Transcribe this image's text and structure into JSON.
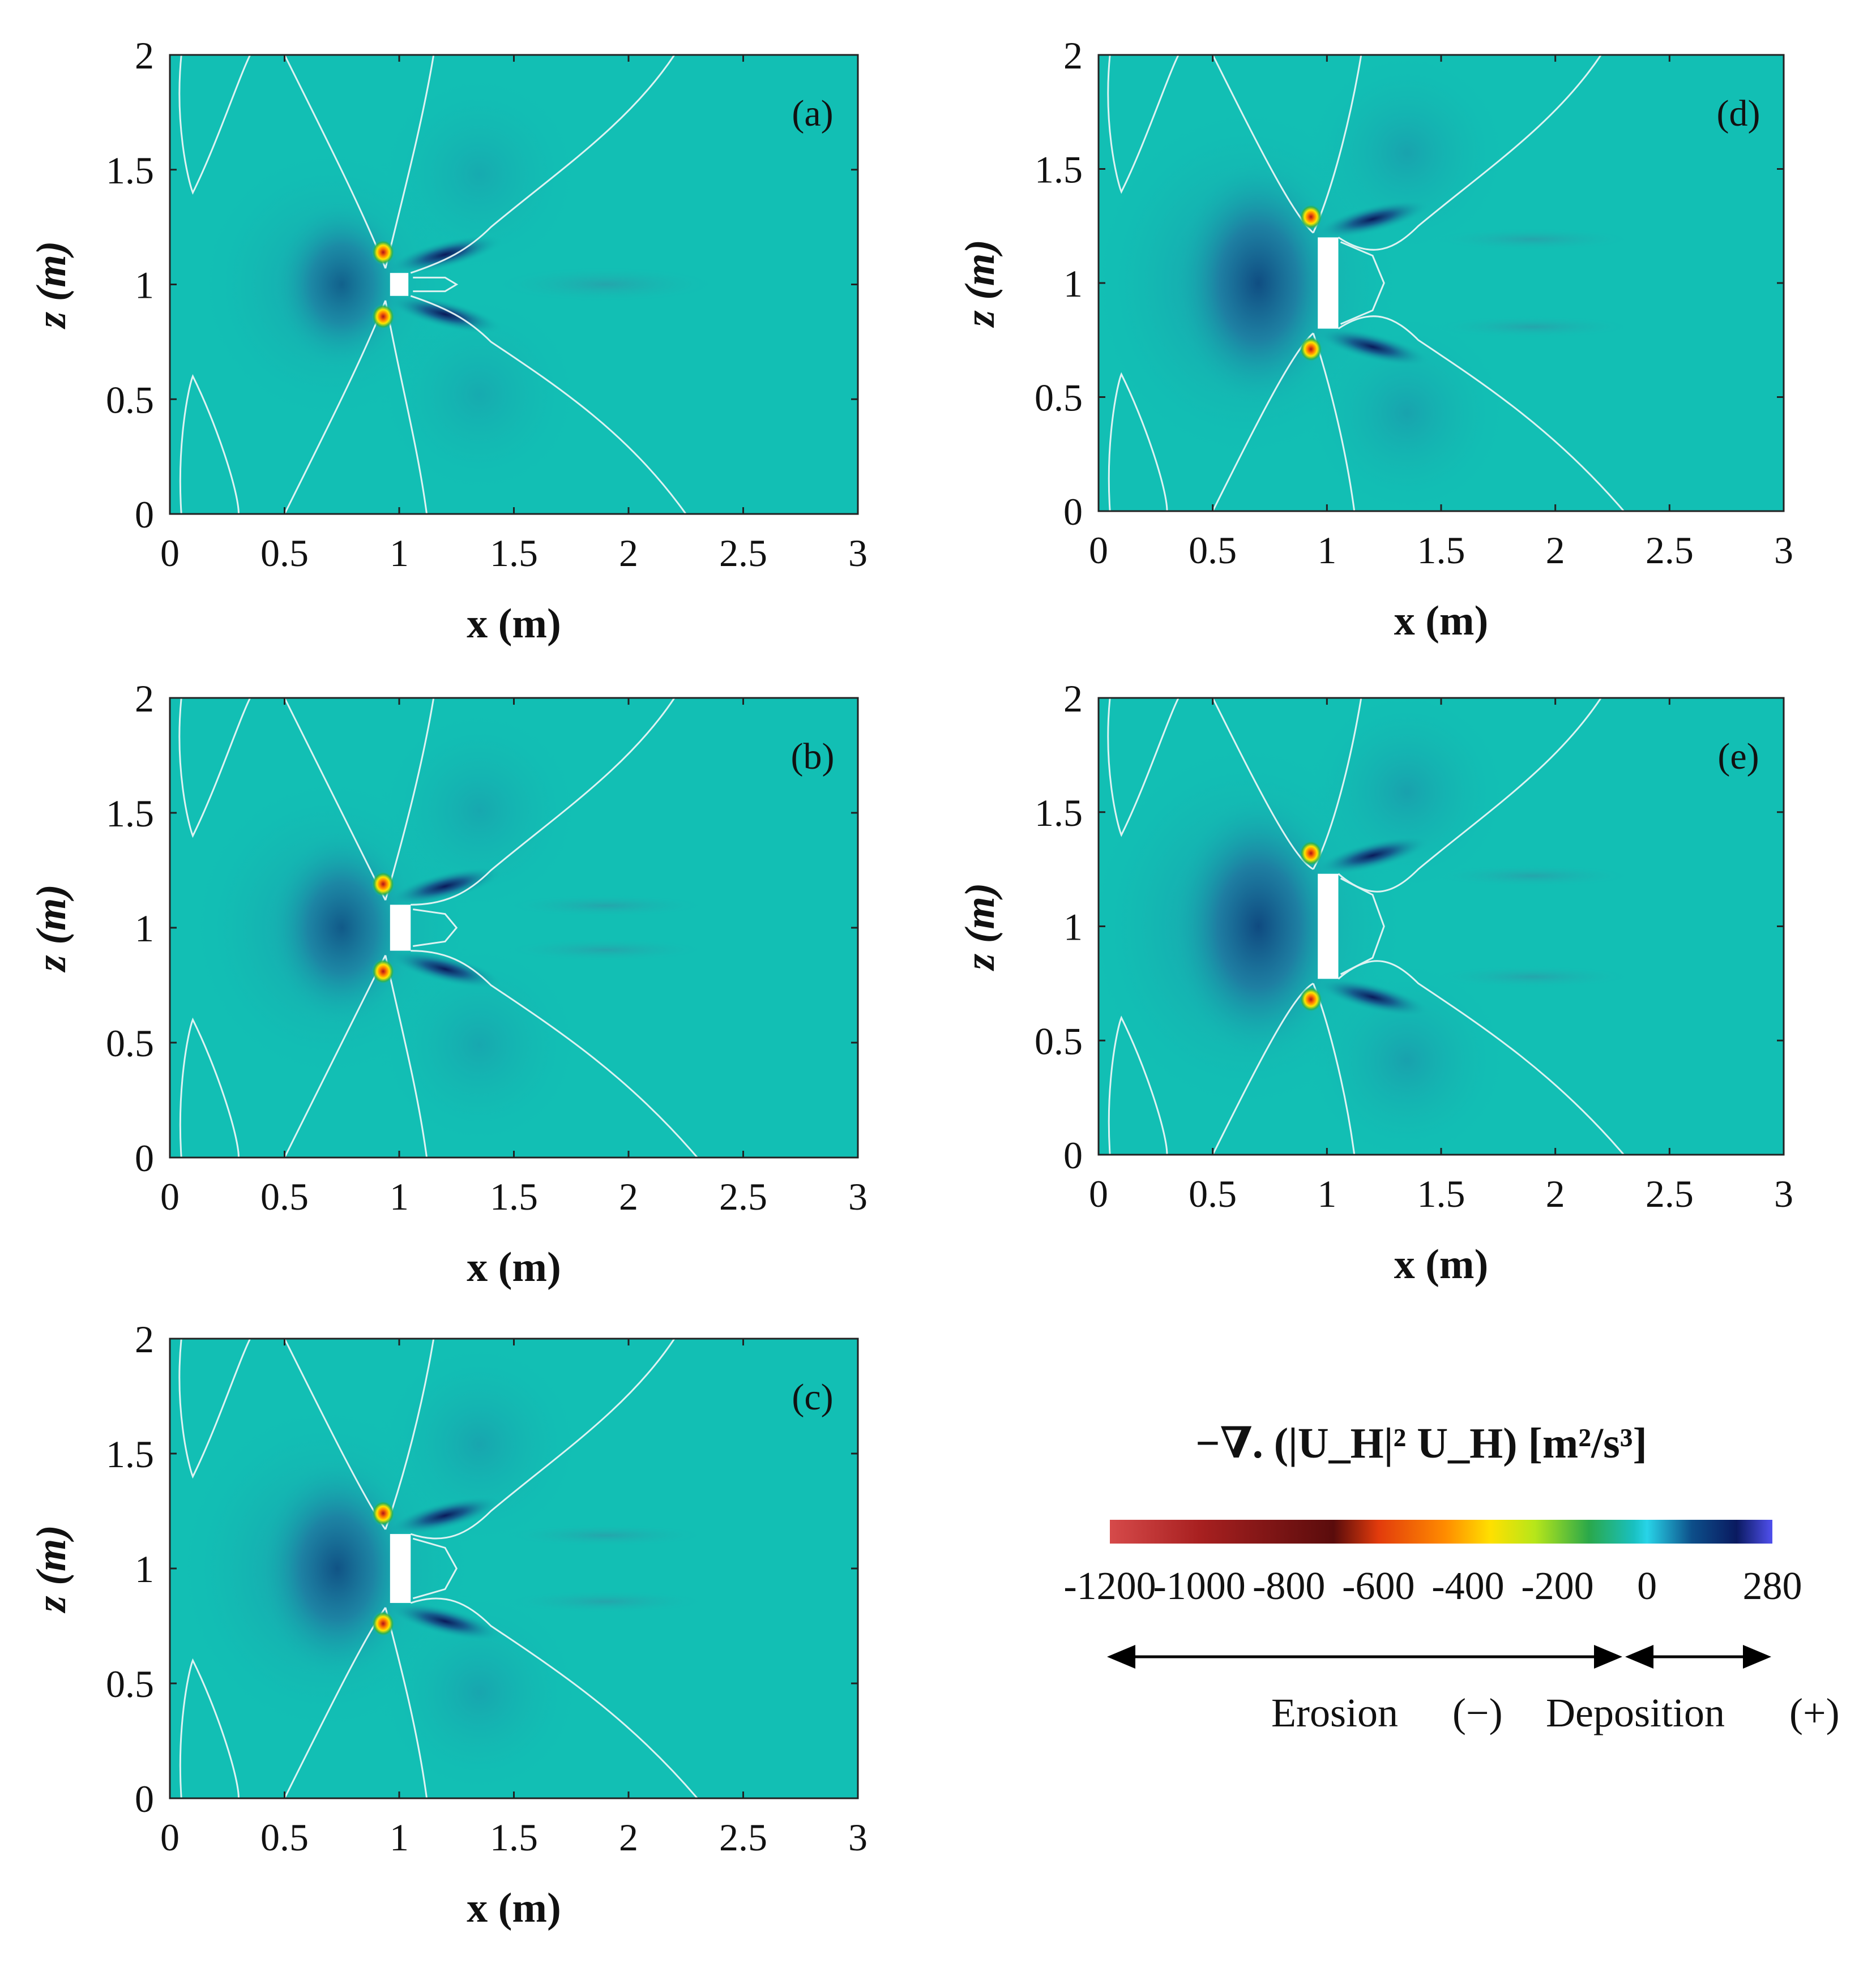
{
  "chart_data": [
    {
      "type": "heatmap",
      "panel": "(a)",
      "xlabel": "x (m)",
      "ylabel": "z (m)",
      "xlim": [
        0,
        3
      ],
      "ylim": [
        0,
        2
      ],
      "xticks": [
        "0",
        "0.5",
        "1",
        "1.5",
        "2",
        "2.5",
        "3"
      ],
      "yticks": [
        "0",
        "0.5",
        "1",
        "1.5",
        "2"
      ],
      "obstacle": {
        "x": [
          0.96,
          1.04
        ],
        "z": [
          0.95,
          1.05
        ]
      },
      "features": {
        "upstream_low_x": 0.7,
        "upstream_low_z": 1.0,
        "wake_end_x": 2.25
      }
    },
    {
      "type": "heatmap",
      "panel": "(b)",
      "xlabel": "x (m)",
      "ylabel": "z (m)",
      "xlim": [
        0,
        3
      ],
      "ylim": [
        0,
        2
      ],
      "xticks": [
        "0",
        "0.5",
        "1",
        "1.5",
        "2",
        "2.5",
        "3"
      ],
      "yticks": [
        "0",
        "0.5",
        "1",
        "1.5",
        "2"
      ],
      "obstacle": {
        "x": [
          0.96,
          1.05
        ],
        "z": [
          0.9,
          1.1
        ]
      },
      "features": {
        "upstream_low_x": 0.7,
        "upstream_low_z": 1.0,
        "wake_end_x": 2.3
      }
    },
    {
      "type": "heatmap",
      "panel": "(c)",
      "xlabel": "x (m)",
      "ylabel": "z (m)",
      "xlim": [
        0,
        3
      ],
      "ylim": [
        0,
        2
      ],
      "xticks": [
        "0",
        "0.5",
        "1",
        "1.5",
        "2",
        "2.5",
        "3"
      ],
      "yticks": [
        "0",
        "0.5",
        "1",
        "1.5",
        "2"
      ],
      "obstacle": {
        "x": [
          0.96,
          1.05
        ],
        "z": [
          0.85,
          1.15
        ]
      },
      "features": {
        "upstream_low_x": 0.68,
        "upstream_low_z": 1.0,
        "wake_end_x": 2.3
      }
    },
    {
      "type": "heatmap",
      "panel": "(d)",
      "xlabel": "x (m)",
      "ylabel": "z (m)",
      "xlim": [
        0,
        3
      ],
      "ylim": [
        0,
        2
      ],
      "xticks": [
        "0",
        "0.5",
        "1",
        "1.5",
        "2",
        "2.5",
        "3"
      ],
      "yticks": [
        "0",
        "0.5",
        "1",
        "1.5",
        "2"
      ],
      "obstacle": {
        "x": [
          0.96,
          1.05
        ],
        "z": [
          0.8,
          1.2
        ]
      },
      "features": {
        "upstream_low_x": 0.65,
        "upstream_low_z": 1.0,
        "wake_end_x": 2.3
      }
    },
    {
      "type": "heatmap",
      "panel": "(e)",
      "xlabel": "x (m)",
      "ylabel": "z (m)",
      "xlim": [
        0,
        3
      ],
      "ylim": [
        0,
        2
      ],
      "xticks": [
        "0",
        "0.5",
        "1",
        "1.5",
        "2",
        "2.5",
        "3"
      ],
      "yticks": [
        "0",
        "0.5",
        "1",
        "1.5",
        "2"
      ],
      "obstacle": {
        "x": [
          0.96,
          1.05
        ],
        "z": [
          0.77,
          1.23
        ]
      },
      "features": {
        "upstream_low_x": 0.65,
        "upstream_low_z": 1.0,
        "wake_end_x": 2.3
      }
    }
  ],
  "colorbar": {
    "title": "−∇. (|U_H|² U_H) [m²/s³]",
    "min": -1200,
    "max": 280,
    "tick_labels": [
      "-1200",
      "-1000",
      "-800",
      "-600",
      "-400",
      "-200",
      "0",
      "280"
    ],
    "tick_values": [
      -1200,
      -1000,
      -800,
      -600,
      -400,
      -200,
      0,
      280
    ],
    "colors": [
      "#d64a4a",
      "#a82020",
      "#5a0c0c",
      "#e23b0c",
      "#ff8c00",
      "#ffe000",
      "#b6e61a",
      "#2aa84a",
      "#19c0c0",
      "#28d4e8",
      "#0d4f8a",
      "#0a1a60",
      "#5050ee"
    ],
    "colors_stops": [
      -1200,
      -1000,
      -700,
      -600,
      -450,
      -350,
      -250,
      -130,
      -30,
      0,
      100,
      200,
      280
    ]
  },
  "legend": {
    "erosion_label": "Erosion",
    "erosion_sign": "(−)",
    "deposition_label": "Deposition",
    "deposition_sign": "(+)"
  },
  "colors": {
    "background_field": "#12bfb4",
    "blue_low": "#0e4f83",
    "contour": "#e8f6f6"
  }
}
